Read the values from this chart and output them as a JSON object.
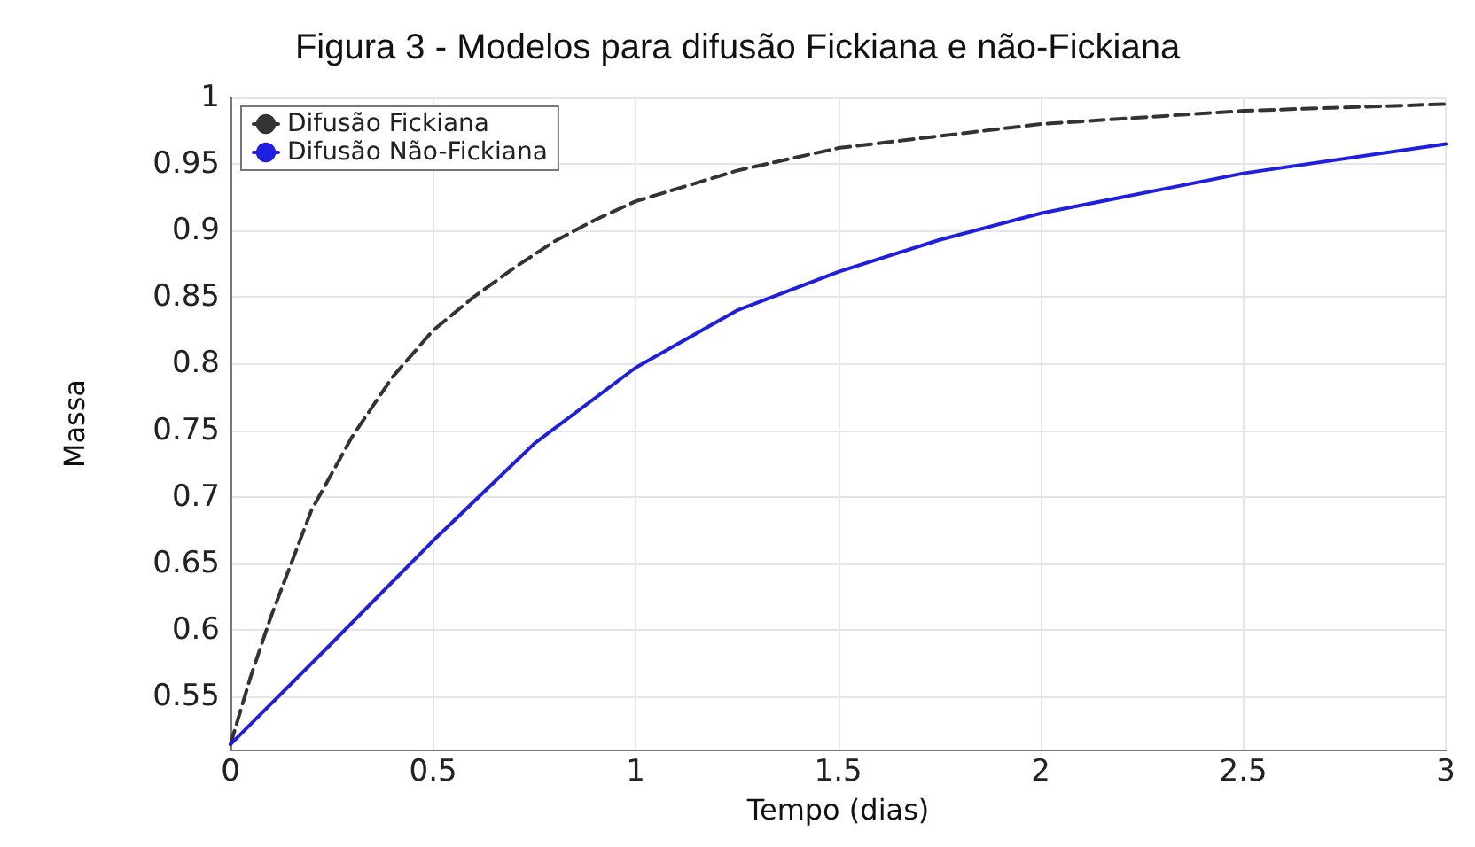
{
  "chart_data": {
    "type": "line",
    "title": "Figura 3 - Modelos para difusão Fickiana e não-Fickiana",
    "xlabel": "Tempo (dias)",
    "ylabel": "Massa",
    "xlim": [
      0,
      3
    ],
    "xticks": [
      0,
      0.5,
      1,
      1.5,
      2,
      2.5,
      3
    ],
    "ylim": [
      0.51,
      1
    ],
    "yticks": [
      0.55,
      0.6,
      0.65,
      0.7,
      0.75,
      0.8,
      0.85,
      0.9,
      0.95,
      1
    ],
    "grid": true,
    "legend": "top left",
    "marker": "none",
    "series": [
      {
        "name": "Difusão Fickiana",
        "color": "#333333",
        "line_style": "dashed",
        "x": [
          0,
          0.05,
          0.1,
          0.2,
          0.3,
          0.4,
          0.5,
          0.6,
          0.7,
          0.8,
          0.9,
          1,
          1.25,
          1.5,
          2,
          2.5,
          3
        ],
        "values": [
          0.514,
          0.565,
          0.61,
          0.69,
          0.745,
          0.79,
          0.825,
          0.85,
          0.872,
          0.892,
          0.908,
          0.922,
          0.945,
          0.962,
          0.98,
          0.99,
          0.995
        ]
      },
      {
        "name": "Difusão Não-Fickiana",
        "color": "#1f1fe0",
        "line_style": "solid",
        "x": [
          0,
          0.25,
          0.5,
          0.75,
          1,
          1.25,
          1.5,
          1.75,
          2,
          2.5,
          3
        ],
        "values": [
          0.514,
          0.59,
          0.667,
          0.74,
          0.797,
          0.84,
          0.869,
          0.893,
          0.913,
          0.943,
          0.965
        ]
      }
    ]
  }
}
